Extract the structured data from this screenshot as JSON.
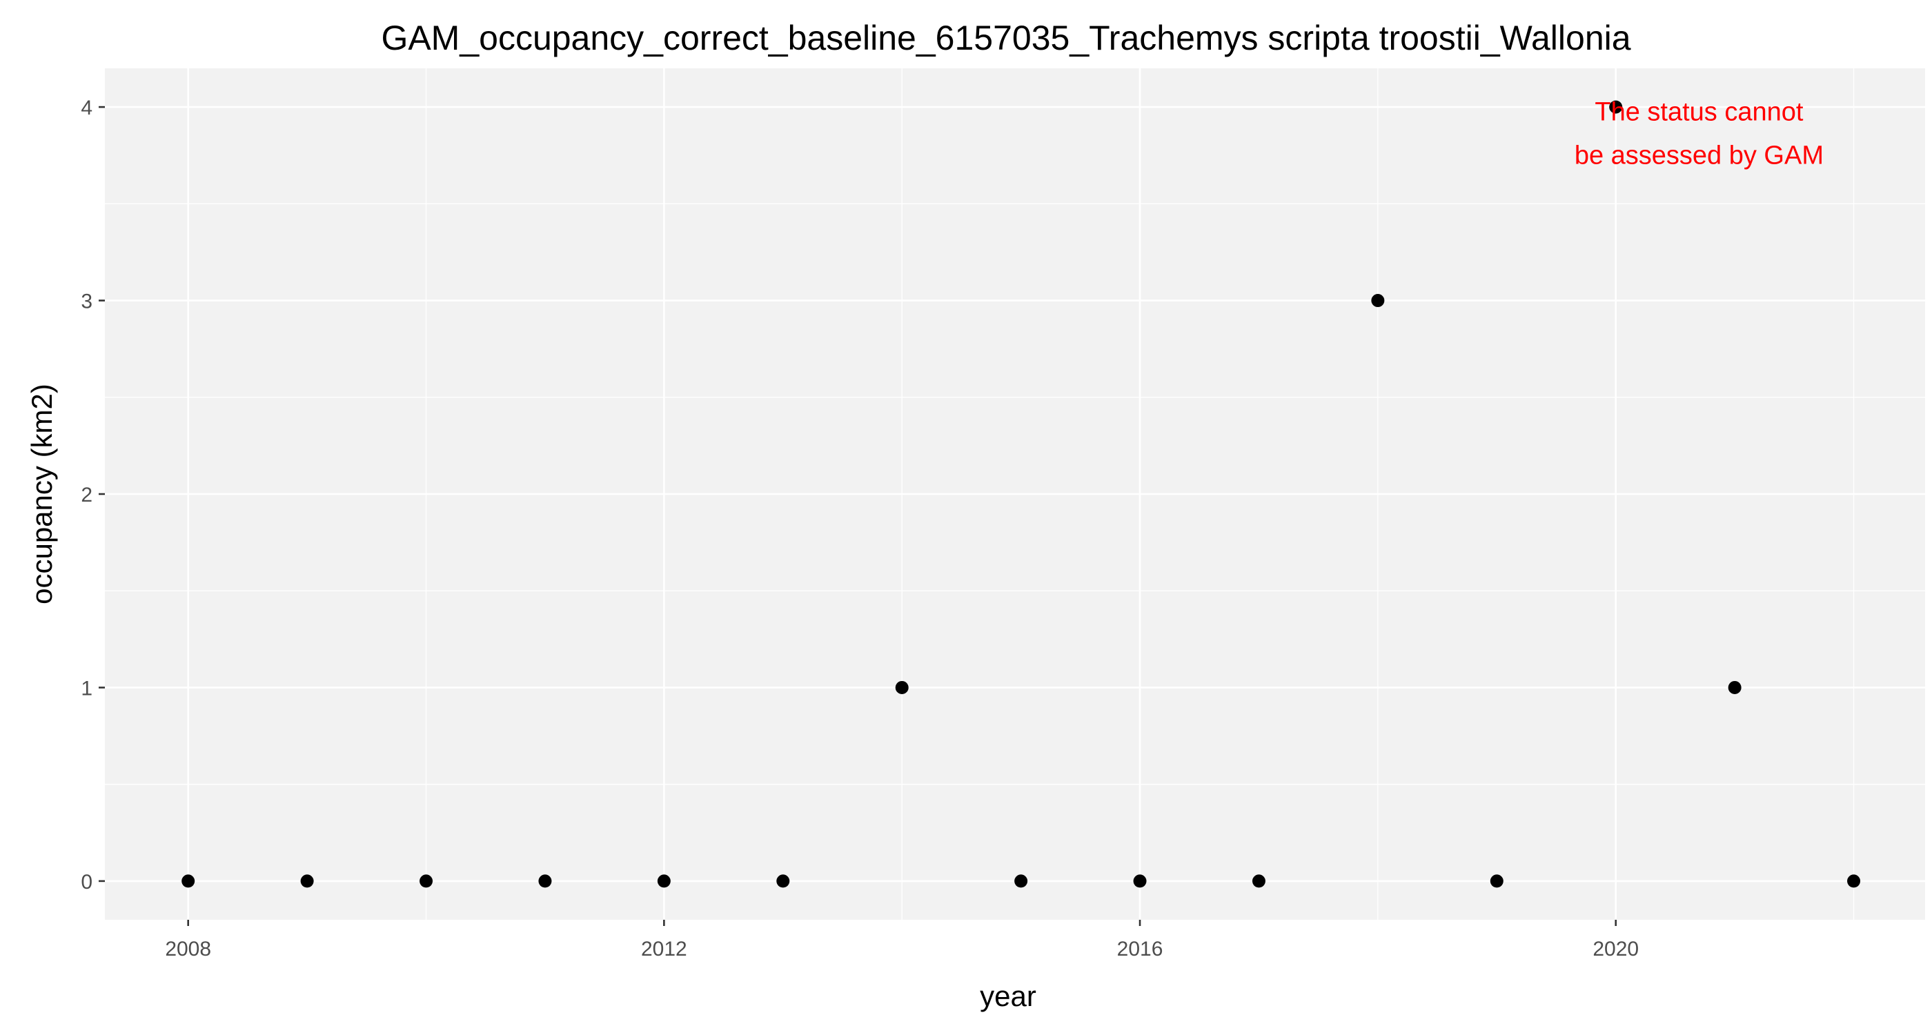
{
  "chart_data": {
    "type": "scatter",
    "title": "GAM_occupancy_correct_baseline_6157035_Trachemys scripta troostii_Wallonia",
    "xlabel": "year",
    "ylabel": "occupancy (km2)",
    "xlim": [
      2007.3,
      2022.6
    ],
    "ylim": [
      -0.2,
      4.2
    ],
    "x_ticks": [
      2008,
      2012,
      2016,
      2020
    ],
    "y_ticks": [
      0,
      1,
      2,
      3,
      4
    ],
    "x_minor_ticks": [
      2010,
      2014,
      2018,
      2022
    ],
    "y_minor_ticks": [
      0.5,
      1.5,
      2.5,
      3.5
    ],
    "grid": true,
    "background_color": "#f2f2f2",
    "point_color": "#000000",
    "annotation": {
      "lines": [
        "The status cannot",
        "be assessed by GAM"
      ],
      "color": "#ff0000"
    },
    "series": [
      {
        "x": [
          2008,
          2009,
          2010,
          2011,
          2012,
          2013,
          2014,
          2015,
          2016,
          2017,
          2018,
          2019,
          2020,
          2021,
          2022
        ],
        "y": [
          0,
          0,
          0,
          0,
          0,
          0,
          1,
          0,
          0,
          0,
          3,
          0,
          4,
          1,
          0
        ]
      }
    ]
  }
}
